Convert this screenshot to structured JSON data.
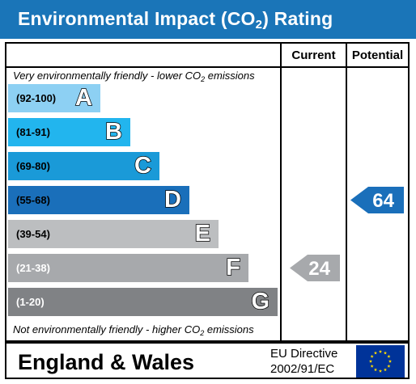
{
  "title": {
    "text": "Environmental Impact (CO",
    "sub": "2",
    "suffix": ") Rating"
  },
  "columns": {
    "current": "Current",
    "potential": "Potential"
  },
  "top_note": {
    "text": "Very environmentally friendly - lower CO",
    "sub": "2",
    "suffix": " emissions"
  },
  "bottom_note": {
    "text": "Not environmentally friendly - higher CO",
    "sub": "2",
    "suffix": " emissions"
  },
  "bands": [
    {
      "range": "(92-100)",
      "letter": "A",
      "color": "#8dd0f3",
      "range_color": "#000000"
    },
    {
      "range": "(81-91)",
      "letter": "B",
      "color": "#22b5ee",
      "range_color": "#000000"
    },
    {
      "range": "(69-80)",
      "letter": "C",
      "color": "#1a9ad8",
      "range_color": "#000000"
    },
    {
      "range": "(55-68)",
      "letter": "D",
      "color": "#1a6fba",
      "range_color": "#000000"
    },
    {
      "range": "(39-54)",
      "letter": "E",
      "color": "#bcbec0",
      "range_color": "#000000"
    },
    {
      "range": "(21-38)",
      "letter": "F",
      "color": "#a7a9ac",
      "range_color": "#ffffff"
    },
    {
      "range": "(1-20)",
      "letter": "G",
      "color": "#808285",
      "range_color": "#ffffff"
    }
  ],
  "current_rating": {
    "value": "24",
    "band": "F",
    "color": "#a7a9ac"
  },
  "potential_rating": {
    "value": "64",
    "band": "D",
    "color": "#1a6fba"
  },
  "footer": {
    "region": "England & Wales",
    "directive_line1": "EU Directive",
    "directive_line2": "2002/91/EC",
    "flag_color": "#003399",
    "star_color": "#ffdd00"
  }
}
